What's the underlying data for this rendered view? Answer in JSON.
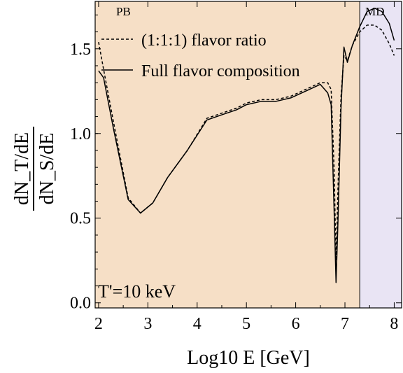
{
  "chart_data": {
    "type": "line",
    "xlabel": "Log10 E [GeV]",
    "ylabel_numerator": "dN_T/dE",
    "ylabel_denominator": "dN_S/dE",
    "xlim": [
      1.93,
      8.15
    ],
    "ylim": [
      -0.03,
      1.78
    ],
    "xticks": [
      2,
      3,
      4,
      5,
      6,
      7,
      8
    ],
    "yticks": [
      "0.0",
      "0.5",
      "1.0",
      "1.5"
    ],
    "regions": [
      {
        "label": "PB",
        "x_range": [
          1.93,
          7.3
        ],
        "color": "#f6dfc6"
      },
      {
        "label": "MD",
        "x_range": [
          7.3,
          8.15
        ],
        "color": "#e9e4f4"
      }
    ],
    "annotation": "T'=10 keV",
    "series": [
      {
        "name": "(1:1:1) flavor ratio",
        "style": "dashed",
        "x": [
          2.0,
          2.1,
          2.3,
          2.6,
          2.85,
          3.1,
          3.4,
          3.8,
          4.2,
          4.5,
          4.8,
          5.0,
          5.3,
          5.6,
          5.9,
          6.2,
          6.5,
          6.65,
          6.72,
          6.78,
          6.82,
          6.86,
          6.92,
          6.98,
          7.05,
          7.15,
          7.3,
          7.45,
          7.6,
          7.75,
          7.9,
          8.0
        ],
        "y": [
          1.54,
          1.38,
          1.07,
          0.62,
          0.53,
          0.59,
          0.74,
          0.9,
          1.09,
          1.12,
          1.15,
          1.18,
          1.2,
          1.2,
          1.22,
          1.26,
          1.3,
          1.3,
          1.26,
          0.8,
          0.25,
          0.7,
          1.22,
          1.46,
          1.43,
          1.52,
          1.6,
          1.64,
          1.64,
          1.61,
          1.53,
          1.46
        ]
      },
      {
        "name": "Full flavor composition",
        "style": "solid",
        "x": [
          2.0,
          2.1,
          2.3,
          2.6,
          2.85,
          3.1,
          3.4,
          3.8,
          4.2,
          4.5,
          4.8,
          5.0,
          5.3,
          5.6,
          5.9,
          6.2,
          6.5,
          6.65,
          6.72,
          6.78,
          6.82,
          6.86,
          6.92,
          6.98,
          7.05,
          7.15,
          7.3,
          7.45,
          7.6,
          7.75,
          7.9,
          8.0
        ],
        "y": [
          1.37,
          1.33,
          1.03,
          0.61,
          0.53,
          0.59,
          0.74,
          0.9,
          1.08,
          1.11,
          1.14,
          1.17,
          1.19,
          1.19,
          1.21,
          1.25,
          1.29,
          1.24,
          1.17,
          0.55,
          0.12,
          0.5,
          1.15,
          1.51,
          1.42,
          1.52,
          1.63,
          1.72,
          1.74,
          1.72,
          1.65,
          1.55
        ]
      }
    ]
  }
}
